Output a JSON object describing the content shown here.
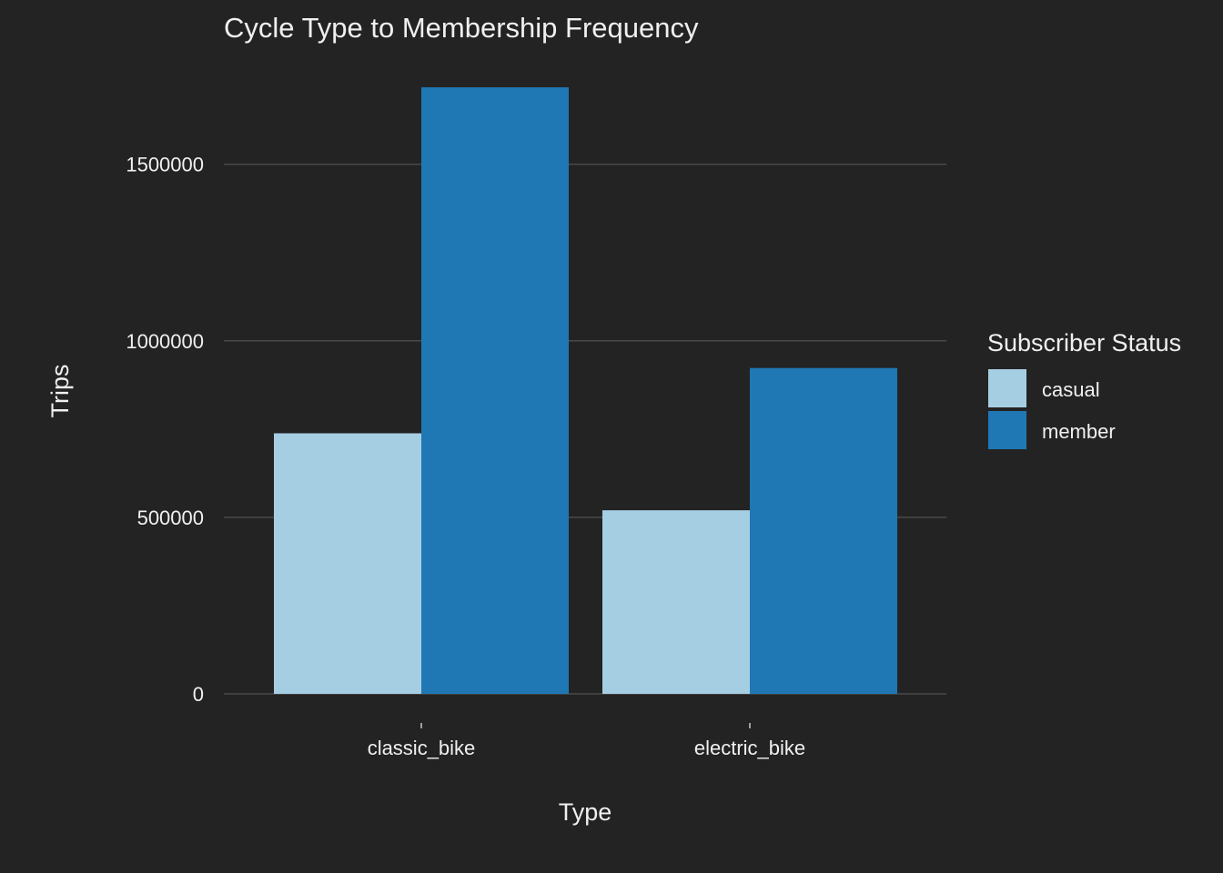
{
  "chart_data": {
    "type": "bar",
    "title": "Cycle Type to Membership Frequency",
    "xlabel": "Type",
    "ylabel": "Trips",
    "categories": [
      "classic_bike",
      "electric_bike"
    ],
    "series": [
      {
        "name": "casual",
        "color": "#a6cee3",
        "values": [
          738000,
          520000
        ]
      },
      {
        "name": "member",
        "color": "#1f78b4",
        "values": [
          1718000,
          923000
        ]
      }
    ],
    "ylim": [
      0,
      1718000
    ],
    "yticks": [
      0,
      500000,
      1000000,
      1500000
    ],
    "ytick_labels": [
      "0",
      "500000",
      "1000000",
      "1500000"
    ],
    "grid": true,
    "legend": {
      "title": "Subscriber Status",
      "position": "right"
    },
    "background": "#232323",
    "grid_color": "#4a4a4a"
  }
}
